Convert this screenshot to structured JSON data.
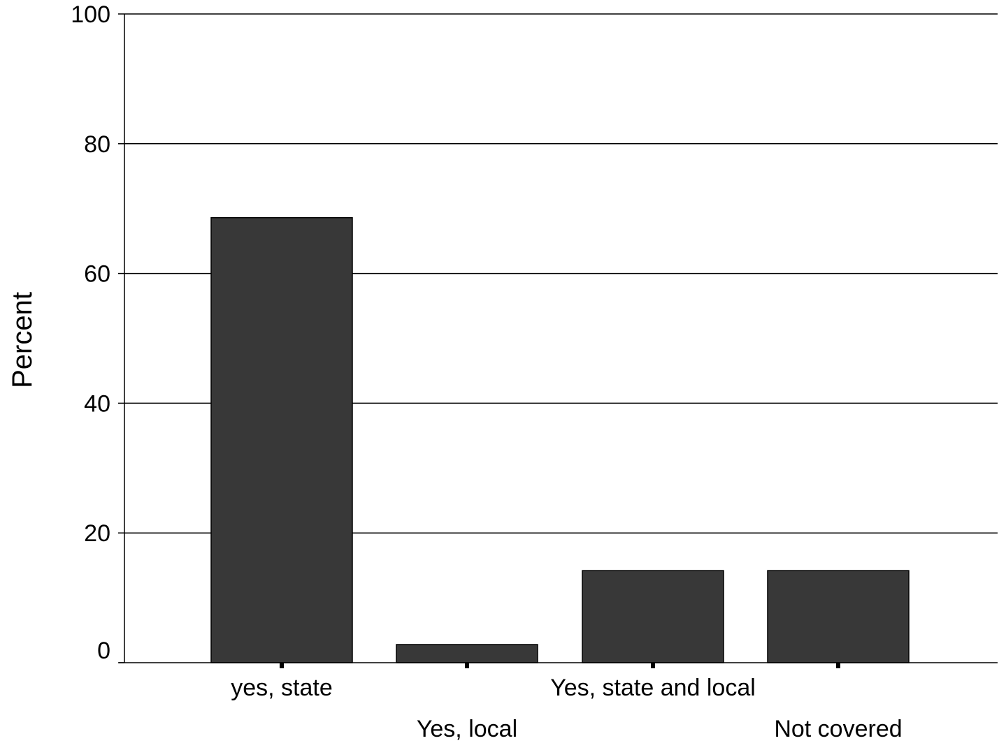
{
  "chart_data": {
    "type": "bar",
    "categories": [
      "yes, state",
      "Yes, local",
      "Yes, state and local",
      "Not covered"
    ],
    "values": [
      68.6,
      2.8,
      14.2,
      14.2
    ],
    "title": "",
    "xlabel": "",
    "ylabel": "Percent",
    "ylim": [
      0,
      100
    ],
    "yticks": [
      "0",
      "20",
      "40",
      "60",
      "80",
      "100"
    ],
    "grid": true,
    "legend": "none",
    "colors": {
      "bar_fill": "#383838",
      "bar_stroke": "#000000",
      "axis": "#000000",
      "grid": "#000000",
      "background": "#ffffff"
    }
  }
}
